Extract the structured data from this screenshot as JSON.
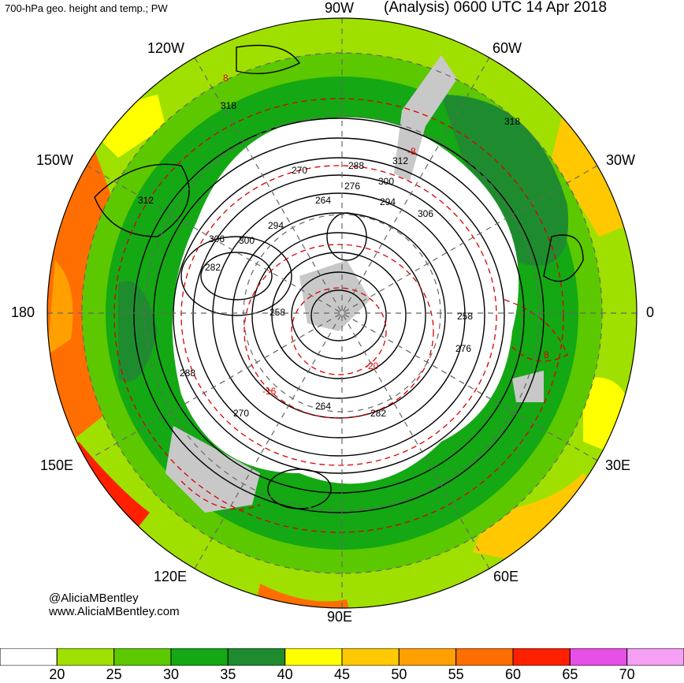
{
  "header": {
    "product": "700-hPa geo. height and temp.; PW",
    "valid": "(Analysis) 0600 UTC 14 Apr 2018"
  },
  "map": {
    "projection": "north-polar-stereographic",
    "longitude_labels": {
      "top": "90W",
      "top_left": "120W",
      "top_right": "60W",
      "upper_left": "150W",
      "upper_right": "30W",
      "left": "180",
      "right": "0",
      "lower_left": "150E",
      "lower_right": "30E",
      "bottom_left": "120E",
      "bottom_right": "60E",
      "bottom": "90E"
    },
    "height_contour_labels": [
      "318",
      "312",
      "306",
      "300",
      "294",
      "288",
      "282",
      "276",
      "270",
      "264",
      "258",
      "318",
      "312",
      "306",
      "300",
      "294",
      "288",
      "282",
      "276",
      "270",
      "264",
      "258"
    ],
    "temperature_contour_labels": [
      "8",
      "-8",
      "-16",
      "-20"
    ],
    "colors": {
      "pw_20_25": "#a0e000",
      "pw_25_30": "#5cc800",
      "pw_30_35": "#14a814",
      "pw_35_40": "#1e8c2e",
      "pw_40_45": "#ffff00",
      "pw_45_50": "#ffc800",
      "pw_50_55": "#ffa000",
      "pw_55_60": "#ff6e00",
      "pw_60_65": "#ff2000",
      "pw_65_70": "#e650e6",
      "pw_70_plus": "#f5a0f5",
      "height_contour": "#000000",
      "temperature_contour": "#dc0000",
      "land_mask": "#c8c8c8"
    }
  },
  "credits": {
    "handle": "@AliciaMBentley",
    "site": "www.AliciaMBentley.com"
  },
  "colorbar": {
    "colors": [
      "#ffffff",
      "#a0e000",
      "#5cc800",
      "#14a814",
      "#1e8c2e",
      "#ffff00",
      "#ffc800",
      "#ffa000",
      "#ff6e00",
      "#ff2000",
      "#e650e6",
      "#f5a0f5"
    ],
    "ticks": [
      "20",
      "25",
      "30",
      "35",
      "40",
      "45",
      "50",
      "55",
      "60",
      "65",
      "70"
    ]
  }
}
